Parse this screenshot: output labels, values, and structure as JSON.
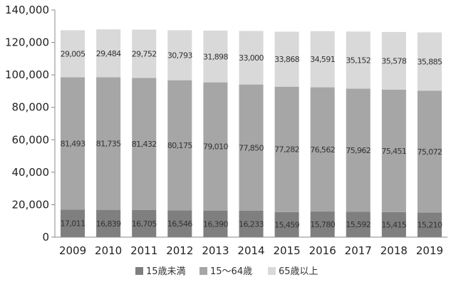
{
  "chart_data": {
    "type": "bar",
    "stacked": true,
    "categories": [
      "2009",
      "2010",
      "2011",
      "2012",
      "2013",
      "2014",
      "2015",
      "2016",
      "2017",
      "2018",
      "2019"
    ],
    "series": [
      {
        "name": "15歳未満",
        "values": [
          17011,
          16839,
          16705,
          16546,
          16390,
          16233,
          15459,
          15780,
          15592,
          15415,
          15210
        ],
        "labels": [
          "17,011",
          "16,839",
          "16,705",
          "16,546",
          "16,390",
          "16,233",
          "15,459",
          "15,780",
          "15,592",
          "15,415",
          "15,210"
        ],
        "color": "#7f7f7f",
        "label_color": "#2a2a2a"
      },
      {
        "name": "15〜64歳",
        "values": [
          81493,
          81735,
          81432,
          80175,
          79010,
          77850,
          77282,
          76562,
          75962,
          75451,
          75072
        ],
        "labels": [
          "81,493",
          "81,735",
          "81,432",
          "80,175",
          "79,010",
          "77,850",
          "77,282",
          "76,562",
          "75,962",
          "75,451",
          "75,072"
        ],
        "color": "#a6a6a6",
        "label_color": "#2a2a2a"
      },
      {
        "name": "65歳以上",
        "values": [
          29005,
          29484,
          29752,
          30793,
          31898,
          33000,
          33868,
          34591,
          35152,
          35578,
          35885
        ],
        "labels": [
          "29,005",
          "29,484",
          "29,752",
          "30,793",
          "31,898",
          "33,000",
          "33,868",
          "34,591",
          "35,152",
          "35,578",
          "35,885"
        ],
        "color": "#d9d9d9",
        "label_color": "#2a2a2a"
      }
    ],
    "yticks": [
      "0",
      "20,000",
      "40,000",
      "60,000",
      "80,000",
      "100,000",
      "120,000",
      "140,000"
    ],
    "ylim": [
      0,
      140000
    ],
    "grid": false,
    "legend_position": "bottom",
    "title": "",
    "xlabel": "",
    "ylabel": ""
  }
}
